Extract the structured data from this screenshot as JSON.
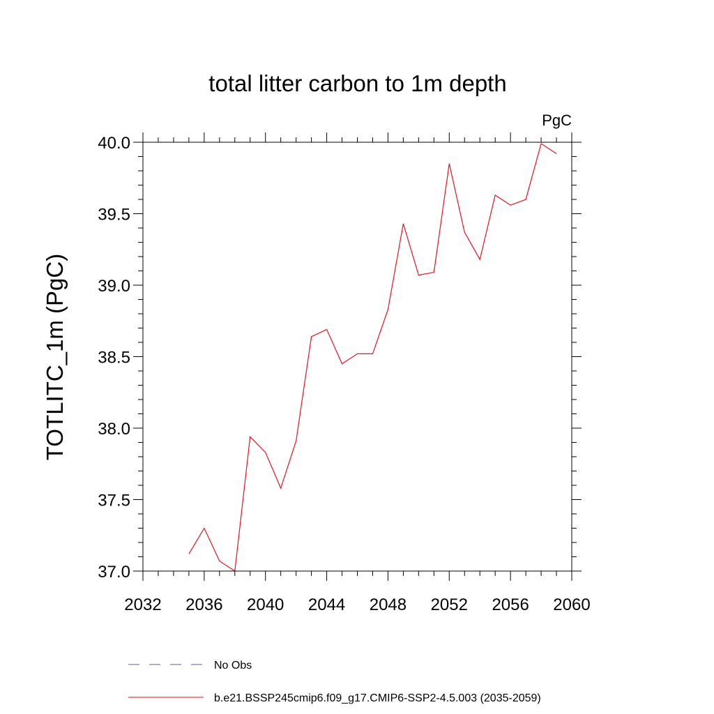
{
  "chart_data": {
    "type": "line",
    "title": "total litter carbon to 1m depth",
    "units_label": "PgC",
    "xlabel": "",
    "ylabel": "TOTLITC_1m  (PgC)",
    "xlim": [
      2032,
      2060
    ],
    "ylim": [
      37.0,
      40.0
    ],
    "x_ticks": [
      2032,
      2036,
      2040,
      2044,
      2048,
      2052,
      2056,
      2060
    ],
    "x_tick_labels": [
      "2032",
      "2036",
      "2040",
      "2044",
      "2048",
      "2052",
      "2056",
      "2060"
    ],
    "y_ticks": [
      37.0,
      37.5,
      38.0,
      38.5,
      39.0,
      39.5,
      40.0
    ],
    "y_tick_labels": [
      "37.0",
      "37.5",
      "38.0",
      "38.5",
      "39.0",
      "39.5",
      "40.0"
    ],
    "grid": false,
    "legend_position": "bottom",
    "series": [
      {
        "name": "No Obs",
        "color": "#5a5aa8",
        "style": "dashed",
        "x": [],
        "y": []
      },
      {
        "name": "b.e21.BSSP245cmip6.f09_g17.CMIP6-SSP2-4.5.003 (2035-2059)",
        "color": "#e8121b",
        "style": "solid",
        "x": [
          2035,
          2036,
          2037,
          2038,
          2039,
          2040,
          2041,
          2042,
          2043,
          2044,
          2045,
          2046,
          2047,
          2048,
          2049,
          2050,
          2051,
          2052,
          2053,
          2054,
          2055,
          2056,
          2057,
          2058,
          2059
        ],
        "y": [
          37.12,
          37.3,
          37.07,
          37.0,
          37.94,
          37.83,
          37.58,
          37.91,
          38.64,
          38.69,
          38.45,
          38.52,
          38.52,
          38.83,
          39.43,
          39.07,
          39.09,
          39.85,
          39.37,
          39.18,
          39.63,
          39.56,
          39.6,
          39.99,
          39.92
        ]
      }
    ]
  }
}
